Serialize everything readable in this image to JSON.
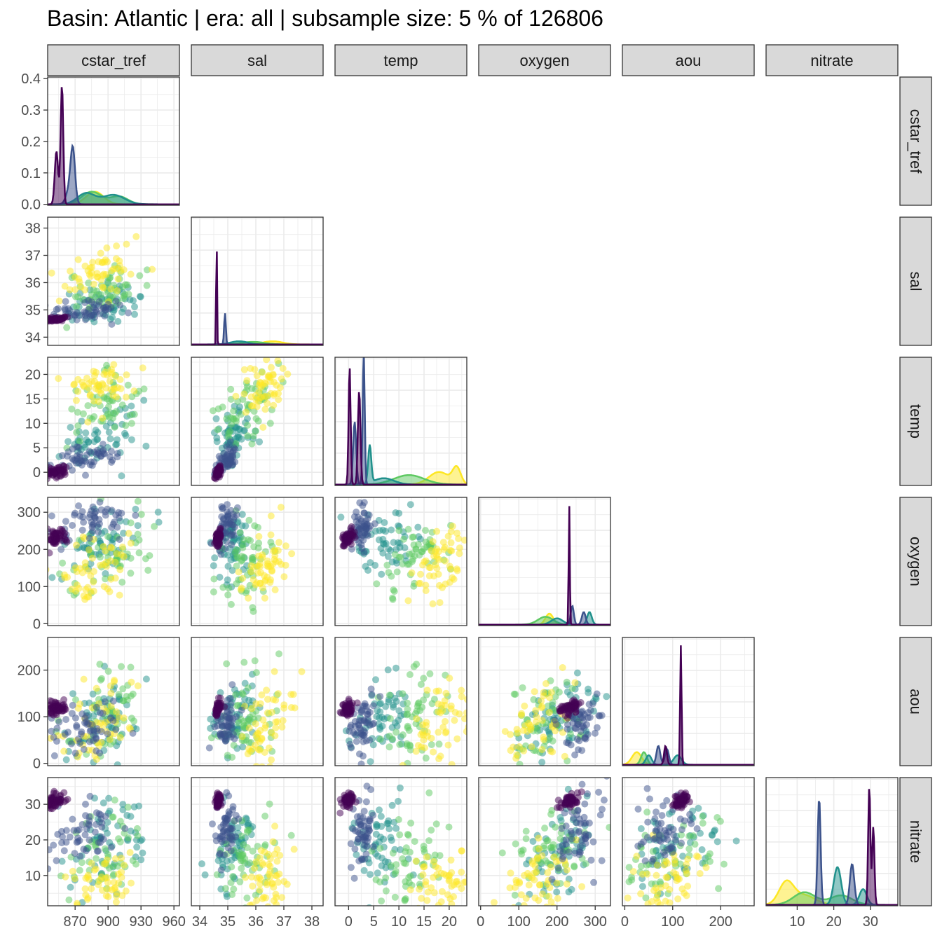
{
  "chart_data": {
    "type": "scatter",
    "title": "Basin: Atlantic | era: all | subsample size: 5 % of 126806",
    "variables": [
      "cstar_tref",
      "sal",
      "temp",
      "oxygen",
      "aou",
      "nitrate"
    ],
    "ranges": {
      "cstar_tref": [
        845,
        965
      ],
      "sal": [
        33.7,
        38.4
      ],
      "temp": [
        -2.7,
        23.5
      ],
      "oxygen": [
        -5,
        340
      ],
      "aou": [
        -5,
        270
      ],
      "nitrate": [
        1.5,
        37.5
      ]
    },
    "ticks": {
      "cstar_tref": [
        870,
        900,
        930,
        960
      ],
      "sal": [
        34,
        35,
        36,
        37,
        38
      ],
      "temp": [
        0,
        5,
        10,
        15,
        20
      ],
      "oxygen": [
        0,
        100,
        200,
        300
      ],
      "aou": [
        0,
        100,
        200
      ],
      "nitrate": [
        10,
        20,
        30
      ]
    },
    "tick_labels": {
      "cstar_tref": [
        "870",
        "900",
        "930",
        "960"
      ],
      "sal": [
        "34",
        "35",
        "36",
        "37",
        "38"
      ],
      "temp": [
        "0",
        "5",
        "10",
        "15",
        "20"
      ],
      "oxygen": [
        "0",
        "100",
        "200",
        "300"
      ],
      "aou": [
        "0",
        "100",
        "200"
      ],
      "nitrate": [
        "10",
        "20",
        "30"
      ]
    },
    "density_axis": {
      "ticks": [
        0.0,
        0.1,
        0.2,
        0.3,
        0.4
      ],
      "labels": [
        "0.0",
        "0.1",
        "0.2",
        "0.3",
        "0.4"
      ],
      "ylim": [
        -0.003,
        0.405
      ]
    },
    "group_colors": [
      "#440154",
      "#3b528b",
      "#21918c",
      "#5ec962",
      "#fde725"
    ],
    "point_alpha": 0.5,
    "groups": [
      {
        "centers": {
          "cstar_tref": 852,
          "sal": 34.65,
          "temp": -0.1,
          "oxygen": 232,
          "aou": 118,
          "nitrate": 31
        },
        "spread": {
          "cstar_tref": 5,
          "sal": 0.05,
          "temp": 0.6,
          "oxygen": 12,
          "aou": 8,
          "nitrate": 1
        }
      },
      {
        "centers": {
          "cstar_tref": 880,
          "sal": 34.95,
          "temp": 2.7,
          "oxygen": 262,
          "aou": 78,
          "nitrate": 22
        },
        "spread": {
          "cstar_tref": 16,
          "sal": 0.2,
          "temp": 1.2,
          "oxygen": 30,
          "aou": 30,
          "nitrate": 5
        }
      },
      {
        "centers": {
          "cstar_tref": 895,
          "sal": 35.2,
          "temp": 7,
          "oxygen": 215,
          "aou": 95,
          "nitrate": 18
        },
        "spread": {
          "cstar_tref": 18,
          "sal": 0.4,
          "temp": 3,
          "oxygen": 45,
          "aou": 45,
          "nitrate": 6
        }
      },
      {
        "centers": {
          "cstar_tref": 898,
          "sal": 35.7,
          "temp": 13,
          "oxygen": 175,
          "aou": 95,
          "nitrate": 15
        },
        "spread": {
          "cstar_tref": 18,
          "sal": 0.5,
          "temp": 3.5,
          "oxygen": 55,
          "aou": 55,
          "nitrate": 7
        }
      },
      {
        "centers": {
          "cstar_tref": 893,
          "sal": 36.4,
          "temp": 18,
          "oxygen": 155,
          "aou": 80,
          "nitrate": 8
        },
        "spread": {
          "cstar_tref": 18,
          "sal": 0.4,
          "temp": 2.8,
          "oxygen": 50,
          "aou": 50,
          "nitrate": 5
        }
      }
    ],
    "density_peaks": {
      "cstar_tref": [
        [
          [
            858,
            0.38,
            1.2
          ],
          [
            853,
            0.17,
            1.5
          ]
        ],
        [
          [
            868,
            0.155,
            2
          ],
          [
            865,
            0.05,
            3
          ]
        ],
        [
          [
            880,
            0.035,
            8
          ],
          [
            905,
            0.03,
            10
          ]
        ],
        [
          [
            885,
            0.04,
            9
          ],
          [
            910,
            0.025,
            8
          ]
        ],
        [
          [
            888,
            0.04,
            8
          ]
        ]
      ],
      "sal": [
        [
          [
            34.6,
            0.38,
            0.015
          ]
        ],
        [
          [
            34.9,
            0.1,
            0.03
          ]
        ],
        [
          [
            35.4,
            0.01,
            0.3
          ]
        ],
        [
          [
            35.9,
            0.008,
            0.4
          ]
        ],
        [
          [
            36.6,
            0.01,
            0.35
          ]
        ]
      ],
      "temp": [
        [
          [
            0.2,
            0.38,
            0.2
          ],
          [
            2.1,
            0.3,
            0.25
          ]
        ],
        [
          [
            3.0,
            0.43,
            0.2
          ],
          [
            1.2,
            0.2,
            0.3
          ]
        ],
        [
          [
            4.2,
            0.12,
            0.3
          ],
          [
            7,
            0.02,
            2
          ]
        ],
        [
          [
            12,
            0.03,
            3
          ]
        ],
        [
          [
            18,
            0.04,
            2
          ],
          [
            21.5,
            0.05,
            0.8
          ]
        ]
      ],
      "oxygen": [
        [
          [
            232,
            0.38,
            1.5
          ]
        ],
        [
          [
            240,
            0.06,
            4
          ],
          [
            270,
            0.04,
            5
          ]
        ],
        [
          [
            200,
            0.02,
            15
          ],
          [
            285,
            0.04,
            6
          ]
        ],
        [
          [
            170,
            0.025,
            20
          ]
        ],
        [
          [
            180,
            0.035,
            10
          ]
        ]
      ],
      "aou": [
        [
          [
            117,
            0.38,
            1.5
          ],
          [
            85,
            0.06,
            3
          ]
        ],
        [
          [
            70,
            0.06,
            4
          ],
          [
            88,
            0.05,
            4
          ]
        ],
        [
          [
            50,
            0.03,
            6
          ],
          [
            110,
            0.03,
            8
          ]
        ],
        [
          [
            40,
            0.04,
            6
          ]
        ],
        [
          [
            25,
            0.04,
            10
          ]
        ]
      ],
      "nitrate": [
        [
          [
            29.7,
            0.38,
            0.3
          ],
          [
            30.8,
            0.25,
            0.3
          ]
        ],
        [
          [
            16,
            0.34,
            0.4
          ],
          [
            25,
            0.13,
            0.6
          ]
        ],
        [
          [
            21,
            0.12,
            1
          ],
          [
            28,
            0.05,
            1
          ]
        ],
        [
          [
            12,
            0.04,
            3
          ],
          [
            22,
            0.03,
            3
          ]
        ],
        [
          [
            7,
            0.07,
            2
          ],
          [
            12,
            0.03,
            3
          ]
        ]
      ]
    }
  }
}
